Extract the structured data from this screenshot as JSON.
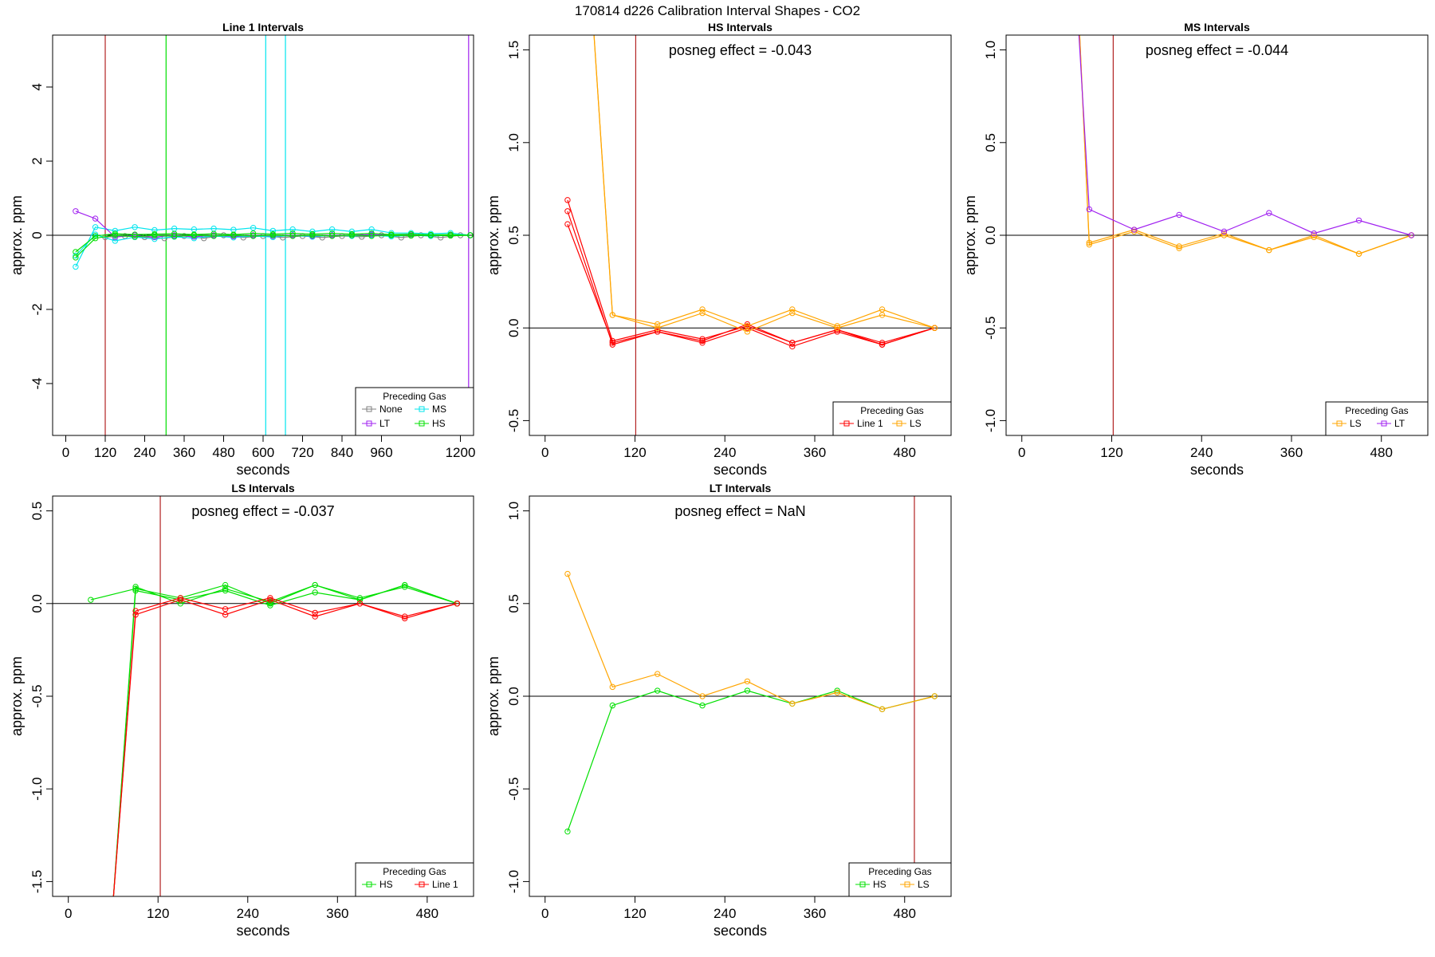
{
  "figure": {
    "title": "170814  d226   Calibration Interval Shapes - CO2"
  },
  "colors": {
    "None": "#808080",
    "MS": "#00e5ee",
    "LT": "#a020f0",
    "HS": "#00e000",
    "Line 1": "#ff0000",
    "LS": "#ffa500",
    "vline": "#b22222",
    "axis": "#000000"
  },
  "chart_data": [
    {
      "type": "line",
      "title": "Line 1 Intervals",
      "xlabel": "seconds",
      "ylabel": "approx. ppm",
      "xlim": [
        -40,
        1240
      ],
      "ylim": [
        -5.4,
        5.4
      ],
      "xticks": [
        0,
        120,
        240,
        360,
        480,
        600,
        720,
        840,
        960,
        1200
      ],
      "yticks": [
        -4,
        -2,
        0,
        2,
        4
      ],
      "hline": 0,
      "vlines": [
        {
          "x": 120,
          "color": "vline"
        },
        {
          "x": 305,
          "color": "HS"
        },
        {
          "x": 608,
          "color": "MS"
        },
        {
          "x": 668,
          "color": "MS"
        },
        {
          "x": 1225,
          "color": "LT"
        }
      ],
      "annotation": "",
      "legend": {
        "title": "Preceding Gas",
        "position": "bottom-right",
        "entries": [
          "None",
          "MS",
          "LT",
          "HS"
        ]
      },
      "series": [
        {
          "name": "None",
          "color": "None",
          "x": [
            120,
            180,
            240,
            300,
            360,
            420,
            480,
            540,
            600,
            660,
            720,
            780,
            840,
            900,
            960,
            1020,
            1080,
            1140,
            1200
          ],
          "y": [
            -0.05,
            -0.02,
            -0.05,
            -0.08,
            -0.02,
            -0.08,
            0.0,
            -0.06,
            -0.02,
            -0.06,
            -0.02,
            -0.06,
            -0.02,
            -0.04,
            0.0,
            -0.06,
            0.0,
            -0.06,
            0.0
          ]
        },
        {
          "name": "MS",
          "color": "MS",
          "x": [
            30,
            90,
            150,
            210,
            270,
            330,
            390,
            450,
            510,
            570,
            630,
            690,
            750,
            810,
            870,
            930,
            990,
            1050,
            1110,
            1170,
            1230
          ],
          "y": [
            -0.85,
            0.22,
            0.12,
            0.22,
            0.14,
            0.18,
            0.16,
            0.18,
            0.15,
            0.2,
            0.12,
            0.16,
            0.1,
            0.16,
            0.1,
            0.16,
            0.06,
            0.06,
            0.04,
            0.06,
            0.0
          ]
        },
        {
          "name": "MS",
          "color": "MS",
          "x": [
            30,
            90,
            150,
            210,
            270,
            330,
            390,
            450,
            510,
            570,
            630,
            690,
            750,
            810,
            870,
            930,
            990,
            1050,
            1110,
            1170,
            1230
          ],
          "y": [
            -0.55,
            0.02,
            -0.15,
            -0.05,
            -0.1,
            -0.04,
            -0.08,
            -0.02,
            -0.06,
            -0.02,
            -0.05,
            0.0,
            -0.04,
            0.0,
            -0.02,
            0.0,
            -0.03,
            0.0,
            -0.02,
            0.0,
            0.0
          ]
        },
        {
          "name": "LT",
          "color": "LT",
          "x": [
            30,
            90,
            150,
            210,
            270,
            330,
            390,
            450,
            510,
            570,
            630,
            690,
            750,
            810,
            870,
            930,
            990,
            1050,
            1110,
            1170,
            1230
          ],
          "y": [
            0.65,
            0.45,
            -0.05,
            0.0,
            -0.05,
            0.0,
            -0.04,
            0.0,
            -0.03,
            0.0,
            -0.02,
            0.0,
            -0.02,
            0.0,
            0.0,
            0.02,
            0.0,
            0.0,
            0.0,
            0.0,
            0.0
          ]
        },
        {
          "name": "HS",
          "color": "HS",
          "x": [
            30,
            90,
            150,
            210,
            270,
            330,
            390,
            450,
            510,
            570,
            630,
            690,
            750,
            810,
            870,
            930,
            990,
            1050,
            1110,
            1170,
            1230
          ],
          "y": [
            -0.45,
            -0.02,
            0.04,
            0.02,
            0.03,
            0.04,
            0.02,
            0.04,
            0.02,
            0.05,
            0.03,
            0.05,
            0.03,
            0.05,
            0.03,
            0.05,
            0.02,
            0.03,
            0.01,
            0.02,
            0.0
          ]
        },
        {
          "name": "HS",
          "color": "HS",
          "x": [
            30,
            90,
            150,
            210,
            270,
            330,
            390,
            450,
            510,
            570,
            630,
            690,
            750,
            810,
            870,
            930,
            990,
            1050,
            1110,
            1170,
            1230
          ],
          "y": [
            -0.6,
            -0.08,
            0.0,
            -0.04,
            0.0,
            -0.03,
            0.0,
            -0.02,
            0.0,
            -0.02,
            0.0,
            -0.02,
            0.0,
            -0.02,
            0.0,
            -0.02,
            0.0,
            -0.01,
            0.0,
            -0.01,
            0.0
          ]
        }
      ]
    },
    {
      "type": "line",
      "title": "HS Intervals",
      "xlabel": "seconds",
      "ylabel": "approx. ppm",
      "xlim": [
        -21,
        542
      ],
      "ylim": [
        -0.58,
        1.58
      ],
      "xticks": [
        0,
        120,
        240,
        360,
        480
      ],
      "yticks": [
        -0.5,
        0.0,
        0.5,
        1.0,
        1.5
      ],
      "hline": 0,
      "vlines": [
        {
          "x": 121,
          "color": "vline"
        }
      ],
      "annotation": "posneg effect = -0.043",
      "legend": {
        "title": "Preceding Gas",
        "position": "bottom-right",
        "entries": [
          "Line 1",
          "LS"
        ]
      },
      "series": [
        {
          "name": "Line 1",
          "color": "Line 1",
          "x": [
            30,
            90,
            150,
            210,
            270,
            330,
            390,
            450,
            520
          ],
          "y": [
            0.69,
            -0.07,
            -0.01,
            -0.06,
            0.01,
            -0.08,
            -0.01,
            -0.08,
            0.0
          ]
        },
        {
          "name": "Line 1",
          "color": "Line 1",
          "x": [
            30,
            90,
            150,
            210,
            270,
            330,
            390,
            450,
            520
          ],
          "y": [
            0.63,
            -0.09,
            -0.02,
            -0.08,
            0.0,
            -0.1,
            -0.02,
            -0.09,
            0.0
          ]
        },
        {
          "name": "Line 1",
          "color": "Line 1",
          "x": [
            30,
            90,
            150,
            210,
            270,
            330,
            390,
            450,
            520
          ],
          "y": [
            0.56,
            -0.08,
            -0.02,
            -0.07,
            0.02,
            -0.08,
            -0.01,
            -0.09,
            0.0
          ]
        },
        {
          "name": "LS",
          "color": "LS",
          "x": [
            65,
            90,
            150,
            210,
            270,
            330,
            390,
            450,
            520
          ],
          "y": [
            1.6,
            0.07,
            0.02,
            0.1,
            0.01,
            0.1,
            0.01,
            0.1,
            0.0
          ]
        },
        {
          "name": "LS",
          "color": "LS",
          "x": [
            65,
            90,
            150,
            210,
            270,
            330,
            390,
            450,
            520
          ],
          "y": [
            1.6,
            0.07,
            0.0,
            0.08,
            -0.02,
            0.08,
            0.0,
            0.07,
            0.0
          ]
        }
      ]
    },
    {
      "type": "line",
      "title": "MS Intervals",
      "xlabel": "seconds",
      "ylabel": "approx. ppm",
      "xlim": [
        -21,
        542
      ],
      "ylim": [
        -1.08,
        1.08
      ],
      "xticks": [
        0,
        120,
        240,
        360,
        480
      ],
      "yticks": [
        -1.0,
        -0.5,
        0.0,
        0.5,
        1.0
      ],
      "hline": 0,
      "vlines": [
        {
          "x": 122,
          "color": "vline"
        }
      ],
      "annotation": "posneg effect = -0.044",
      "legend": {
        "title": "Preceding Gas",
        "position": "bottom-right",
        "entries": [
          "LS",
          "LT"
        ]
      },
      "series": [
        {
          "name": "LS",
          "color": "LS",
          "x": [
            77,
            90,
            150,
            210,
            270,
            330,
            390,
            450,
            520
          ],
          "y": [
            1.1,
            -0.05,
            0.02,
            -0.07,
            0.0,
            -0.08,
            -0.01,
            -0.1,
            0.0
          ]
        },
        {
          "name": "LS",
          "color": "LS",
          "x": [
            77,
            90,
            150,
            210,
            270,
            330,
            390,
            450,
            520
          ],
          "y": [
            1.1,
            -0.04,
            0.03,
            -0.06,
            0.01,
            -0.08,
            0.0,
            -0.1,
            0.0
          ]
        },
        {
          "name": "LT",
          "color": "LT",
          "x": [
            76,
            90,
            150,
            210,
            270,
            330,
            390,
            450,
            520
          ],
          "y": [
            1.1,
            0.14,
            0.03,
            0.11,
            0.02,
            0.12,
            0.01,
            0.08,
            0.0
          ]
        }
      ]
    },
    {
      "type": "line",
      "title": "LS Intervals",
      "xlabel": "seconds",
      "ylabel": "approx. ppm",
      "xlim": [
        -21,
        542
      ],
      "ylim": [
        -1.58,
        0.58
      ],
      "xticks": [
        0,
        120,
        240,
        360,
        480
      ],
      "yticks": [
        -1.5,
        -1.0,
        -0.5,
        0.0,
        0.5
      ],
      "hline": 0,
      "vlines": [
        {
          "x": 123,
          "color": "vline"
        }
      ],
      "annotation": "posneg effect = -0.037",
      "legend": {
        "title": "Preceding Gas",
        "position": "bottom-right",
        "entries": [
          "HS",
          "Line 1"
        ]
      },
      "series": [
        {
          "name": "HS",
          "color": "HS",
          "x": [
            30,
            90,
            150,
            210,
            270,
            330,
            390,
            450,
            520
          ],
          "y": [
            0.02,
            0.08,
            0.03,
            0.1,
            0.0,
            0.1,
            0.02,
            0.1,
            0.0
          ]
        },
        {
          "name": "HS",
          "color": "HS",
          "x": [
            60,
            90,
            150,
            210,
            270,
            330,
            390,
            450,
            520
          ],
          "y": [
            -1.6,
            0.09,
            0.0,
            0.08,
            0.01,
            0.1,
            0.03,
            0.09,
            0.0
          ]
        },
        {
          "name": "HS",
          "color": "HS",
          "x": [
            60,
            90,
            150,
            210,
            270,
            330,
            390,
            450,
            520
          ],
          "y": [
            -1.6,
            0.07,
            0.02,
            0.07,
            -0.01,
            0.06,
            0.02,
            0.1,
            0.0
          ]
        },
        {
          "name": "Line 1",
          "color": "Line 1",
          "x": [
            60,
            90,
            150,
            210,
            270,
            330,
            390,
            450,
            520
          ],
          "y": [
            -1.6,
            -0.04,
            0.03,
            -0.03,
            0.03,
            -0.05,
            0.0,
            -0.07,
            0.0
          ]
        },
        {
          "name": "Line 1",
          "color": "Line 1",
          "x": [
            60,
            90,
            150,
            210,
            270,
            330,
            390,
            450,
            520
          ],
          "y": [
            -1.6,
            -0.06,
            0.02,
            -0.06,
            0.02,
            -0.07,
            0.0,
            -0.08,
            0.0
          ]
        }
      ]
    },
    {
      "type": "line",
      "title": "LT Intervals",
      "xlabel": "seconds",
      "ylabel": "approx. ppm",
      "xlim": [
        -21,
        542
      ],
      "ylim": [
        -1.08,
        1.08
      ],
      "xticks": [
        0,
        120,
        240,
        360,
        480
      ],
      "yticks": [
        -1.0,
        -0.5,
        0.0,
        0.5,
        1.0
      ],
      "hline": 0,
      "vlines": [
        {
          "x": 493,
          "color": "vline"
        }
      ],
      "annotation": "posneg effect = NaN",
      "legend": {
        "title": "Preceding Gas",
        "position": "bottom-right",
        "entries": [
          "HS",
          "LS"
        ]
      },
      "series": [
        {
          "name": "HS",
          "color": "HS",
          "x": [
            30,
            90,
            150,
            210,
            270,
            330,
            390,
            450,
            520
          ],
          "y": [
            -0.73,
            -0.05,
            0.03,
            -0.05,
            0.03,
            -0.04,
            0.03,
            -0.07,
            0.0
          ]
        },
        {
          "name": "LS",
          "color": "LS",
          "x": [
            30,
            90,
            150,
            210,
            270,
            330,
            390,
            450,
            520
          ],
          "y": [
            0.66,
            0.05,
            0.12,
            0.0,
            0.08,
            -0.04,
            0.02,
            -0.07,
            0.0
          ]
        }
      ]
    }
  ]
}
